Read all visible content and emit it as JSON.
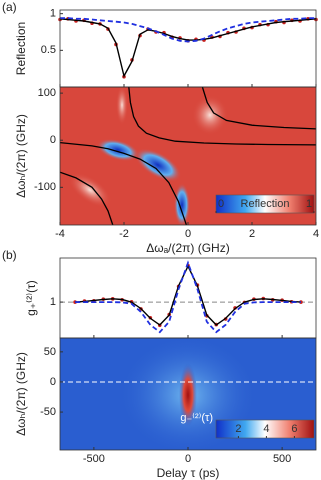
{
  "chart_data": [
    {
      "type": "line",
      "panel_label": "(a)",
      "ylabel": "Reflection",
      "xlim": [
        -4,
        4
      ],
      "xticks": [
        -4,
        -2,
        0,
        2,
        4
      ],
      "ylim": [
        0,
        1.05
      ],
      "yticks": [
        0.5,
        1
      ],
      "x": [
        -4,
        -3.75,
        -3.5,
        -3.25,
        -3,
        -2.75,
        -2.5,
        -2.25,
        -2,
        -1.75,
        -1.5,
        -1.25,
        -1,
        -0.75,
        -0.5,
        -0.25,
        0,
        0.25,
        0.5,
        0.75,
        1,
        1.25,
        1.5,
        1.75,
        2,
        2.25,
        2.5,
        2.75,
        3,
        3.25,
        3.5,
        3.75,
        4
      ],
      "series": [
        {
          "color": "#c8201e",
          "style": "dots",
          "values": [
            0.92,
            0.93,
            0.9,
            0.91,
            0.87,
            0.86,
            0.79,
            0.58,
            0.14,
            0.37,
            0.7,
            0.79,
            0.75,
            0.74,
            0.68,
            0.67,
            0.63,
            0.65,
            0.64,
            0.68,
            0.69,
            0.74,
            0.75,
            0.8,
            0.81,
            0.85,
            0.85,
            0.89,
            0.88,
            0.91,
            0.9,
            0.93,
            0.92
          ]
        },
        {
          "color": "#000000",
          "style": "solid",
          "values": [
            0.93,
            0.92,
            0.91,
            0.9,
            0.88,
            0.86,
            0.8,
            0.6,
            0.15,
            0.35,
            0.72,
            0.78,
            0.76,
            0.73,
            0.69,
            0.66,
            0.64,
            0.64,
            0.65,
            0.67,
            0.7,
            0.73,
            0.76,
            0.79,
            0.82,
            0.84,
            0.86,
            0.88,
            0.89,
            0.9,
            0.91,
            0.92,
            0.93
          ]
        },
        {
          "color": "#2030e0",
          "style": "dashed",
          "values": [
            0.94,
            0.94,
            0.93,
            0.93,
            0.92,
            0.91,
            0.9,
            0.89,
            0.88,
            0.86,
            0.83,
            0.8,
            0.76,
            0.71,
            0.66,
            0.63,
            0.62,
            0.63,
            0.66,
            0.71,
            0.76,
            0.8,
            0.83,
            0.86,
            0.88,
            0.89,
            0.9,
            0.91,
            0.92,
            0.93,
            0.93,
            0.94,
            0.94
          ]
        }
      ]
    },
    {
      "type": "heatmap",
      "ylabel": "Δωₕ/(2π) (GHz)",
      "xlabel": "Δωₐ/(2π) (GHz)",
      "xlim": [
        -4,
        4
      ],
      "xticks": [
        -4,
        -2,
        0,
        2,
        4
      ],
      "ylim": [
        -180,
        113
      ],
      "yticks": [
        100,
        0,
        -100
      ],
      "line_color": "#000000",
      "lines": [
        {
          "x": [
            -1.85,
            -1.8,
            -1.7,
            -1.55,
            -1.3,
            -0.9,
            -0.4,
            0.5,
            1.5,
            2.5,
            4
          ],
          "y": [
            113,
            80,
            50,
            30,
            15,
            5,
            -2,
            -6,
            -8,
            -9,
            -10
          ]
        },
        {
          "x": [
            -4,
            -3,
            -2.5,
            -2,
            -1.5,
            -1,
            -0.6,
            -0.3,
            -0.15,
            -0.05
          ],
          "y": [
            -5,
            -12,
            -18,
            -28,
            -40,
            -60,
            -90,
            -130,
            -160,
            -180
          ]
        },
        {
          "x": [
            0.45,
            0.6,
            0.8,
            1.2,
            2,
            3,
            4
          ],
          "y": [
            113,
            80,
            58,
            42,
            32,
            27,
            24
          ]
        },
        {
          "x": [
            -4,
            -3.5,
            -3,
            -2.7,
            -2.5,
            -2.35
          ],
          "y": [
            -68,
            -80,
            -100,
            -125,
            -150,
            -180
          ]
        }
      ],
      "colorbar": {
        "label": "Reflection",
        "lim": [
          0,
          1
        ],
        "ticks": [
          0,
          1
        ]
      }
    },
    {
      "type": "line",
      "panel_label": "(b)",
      "ylabel": "g₊⁽²⁾(τ)",
      "xlim": [
        -680,
        680
      ],
      "xticks": [
        -500,
        0,
        500
      ],
      "ylim": [
        -0.1,
        2.35
      ],
      "yticks": [
        1
      ],
      "hline": 1,
      "x": [
        -600,
        -550,
        -500,
        -450,
        -400,
        -350,
        -300,
        -250,
        -200,
        -150,
        -100,
        -50,
        0,
        50,
        100,
        150,
        200,
        250,
        300,
        350,
        400,
        450,
        500,
        550,
        600
      ],
      "series": [
        {
          "color": "#c8201e",
          "style": "dots",
          "values": [
            1.0,
            1.03,
            1.04,
            1.09,
            1.1,
            1.07,
            1.01,
            0.79,
            0.52,
            0.29,
            0.62,
            1.48,
            2.12,
            1.52,
            0.58,
            0.31,
            0.48,
            0.82,
            0.99,
            1.09,
            1.11,
            1.07,
            1.06,
            1.01,
            1.0
          ]
        },
        {
          "color": "#000000",
          "style": "solid",
          "values": [
            1.0,
            1.02,
            1.05,
            1.08,
            1.1,
            1.08,
            1.0,
            0.8,
            0.5,
            0.3,
            0.6,
            1.5,
            2.1,
            1.5,
            0.6,
            0.3,
            0.5,
            0.8,
            1.0,
            1.08,
            1.1,
            1.08,
            1.05,
            1.02,
            1.0
          ]
        },
        {
          "color": "#2030e0",
          "style": "dashed",
          "values": [
            1.0,
            1.0,
            1.0,
            1.0,
            1.0,
            0.99,
            0.95,
            0.7,
            0.3,
            0.08,
            0.4,
            1.4,
            2.2,
            1.4,
            0.4,
            0.08,
            0.3,
            0.7,
            0.95,
            0.99,
            1.0,
            1.0,
            1.0,
            1.0,
            1.0
          ]
        }
      ]
    },
    {
      "type": "heatmap",
      "ylabel": "Δωₕ/(2π) (GHz)",
      "xlabel": "Delay τ (ps)",
      "xlim": [
        -680,
        680
      ],
      "xticks": [
        -500,
        0,
        500
      ],
      "ylim": [
        -113,
        73
      ],
      "yticks": [
        50,
        0,
        -50
      ],
      "hline": 0,
      "colorbar": {
        "label": "g₋⁽²⁾(τ)",
        "lim": [
          0.4,
          7.4
        ],
        "ticks": [
          2,
          4,
          6
        ]
      }
    }
  ]
}
